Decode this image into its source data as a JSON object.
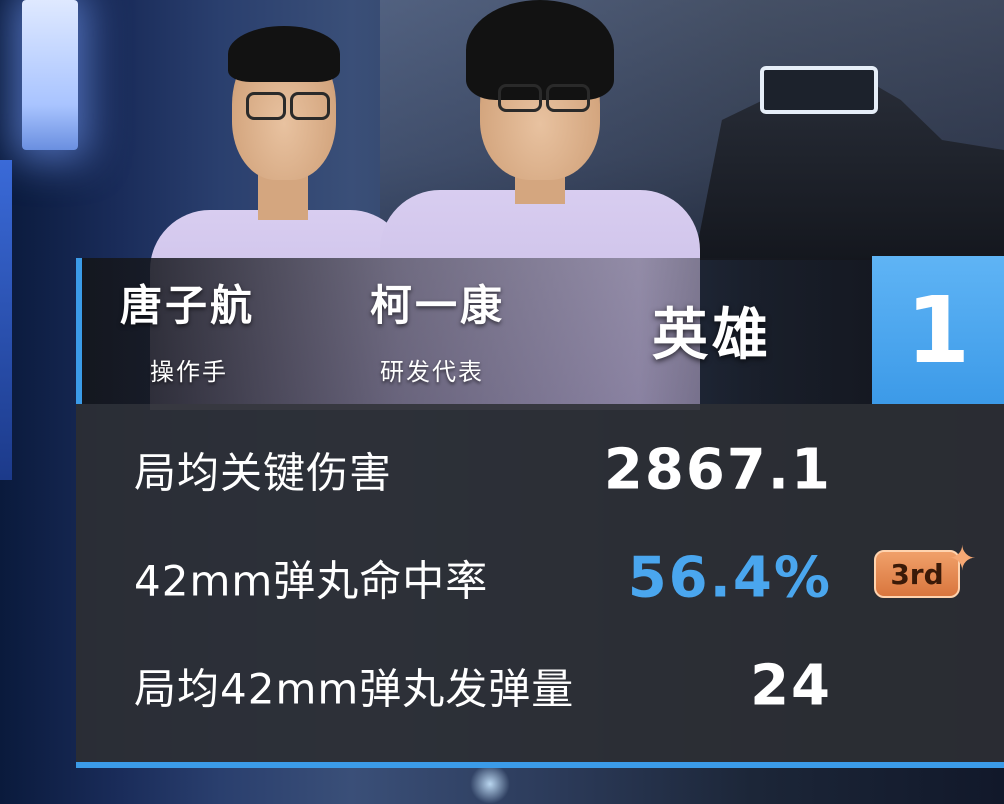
{
  "team": {
    "members": [
      {
        "name": "唐子航",
        "role": "操作手"
      },
      {
        "name": "柯一康",
        "role": "研发代表"
      }
    ],
    "category": "英雄",
    "rank": "1"
  },
  "stats": [
    {
      "label": "局均关键伤害",
      "value": "2867.1",
      "highlight": false,
      "badge": null
    },
    {
      "label": "42mm弹丸命中率",
      "value": "56.4%",
      "highlight": true,
      "badge": "3rd"
    },
    {
      "label": "局均42mm弹丸发弹量",
      "value": "24",
      "highlight": false,
      "badge": null
    }
  ],
  "colors": {
    "accent": "#3b9be8",
    "highlight_value": "#4aa6ee",
    "badge": "#e08a52",
    "panel": "#2c2e34"
  },
  "icons": {
    "badge_decoration": "sparkle-icon"
  }
}
